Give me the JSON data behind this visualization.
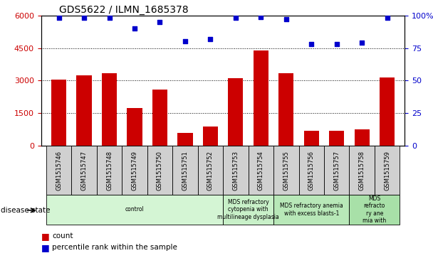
{
  "title": "GDS5622 / ILMN_1685378",
  "samples": [
    "GSM1515746",
    "GSM1515747",
    "GSM1515748",
    "GSM1515749",
    "GSM1515750",
    "GSM1515751",
    "GSM1515752",
    "GSM1515753",
    "GSM1515754",
    "GSM1515755",
    "GSM1515756",
    "GSM1515757",
    "GSM1515758",
    "GSM1515759"
  ],
  "counts": [
    3050,
    3250,
    3350,
    1750,
    2600,
    600,
    900,
    3100,
    4400,
    3350,
    680,
    680,
    750,
    3150
  ],
  "percentiles": [
    98,
    98,
    98,
    90,
    95,
    80,
    82,
    98,
    99,
    97,
    78,
    78,
    79,
    98
  ],
  "ylim_left": [
    0,
    6000
  ],
  "ylim_right": [
    0,
    100
  ],
  "yticks_left": [
    0,
    1500,
    3000,
    4500,
    6000
  ],
  "yticks_right": [
    0,
    25,
    50,
    75,
    100
  ],
  "groups": [
    {
      "label": "control",
      "start": 0,
      "end": 7,
      "color": "#d4f5d4"
    },
    {
      "label": "MDS refractory\ncytopenia with\nmultilineage dysplasia",
      "start": 7,
      "end": 9,
      "color": "#c8f0c8"
    },
    {
      "label": "MDS refractory anemia\nwith excess blasts-1",
      "start": 9,
      "end": 12,
      "color": "#b8e8b8"
    },
    {
      "label": "MDS\nrefracto\nry ane\nmia with",
      "start": 12,
      "end": 14,
      "color": "#a8e0a8"
    }
  ],
  "bar_color": "#cc0000",
  "dot_color": "#0000cc",
  "tick_label_color_left": "#cc0000",
  "tick_label_color_right": "#0000cc",
  "sample_box_color": "#d0d0d0",
  "plot_bg": "#ffffff"
}
